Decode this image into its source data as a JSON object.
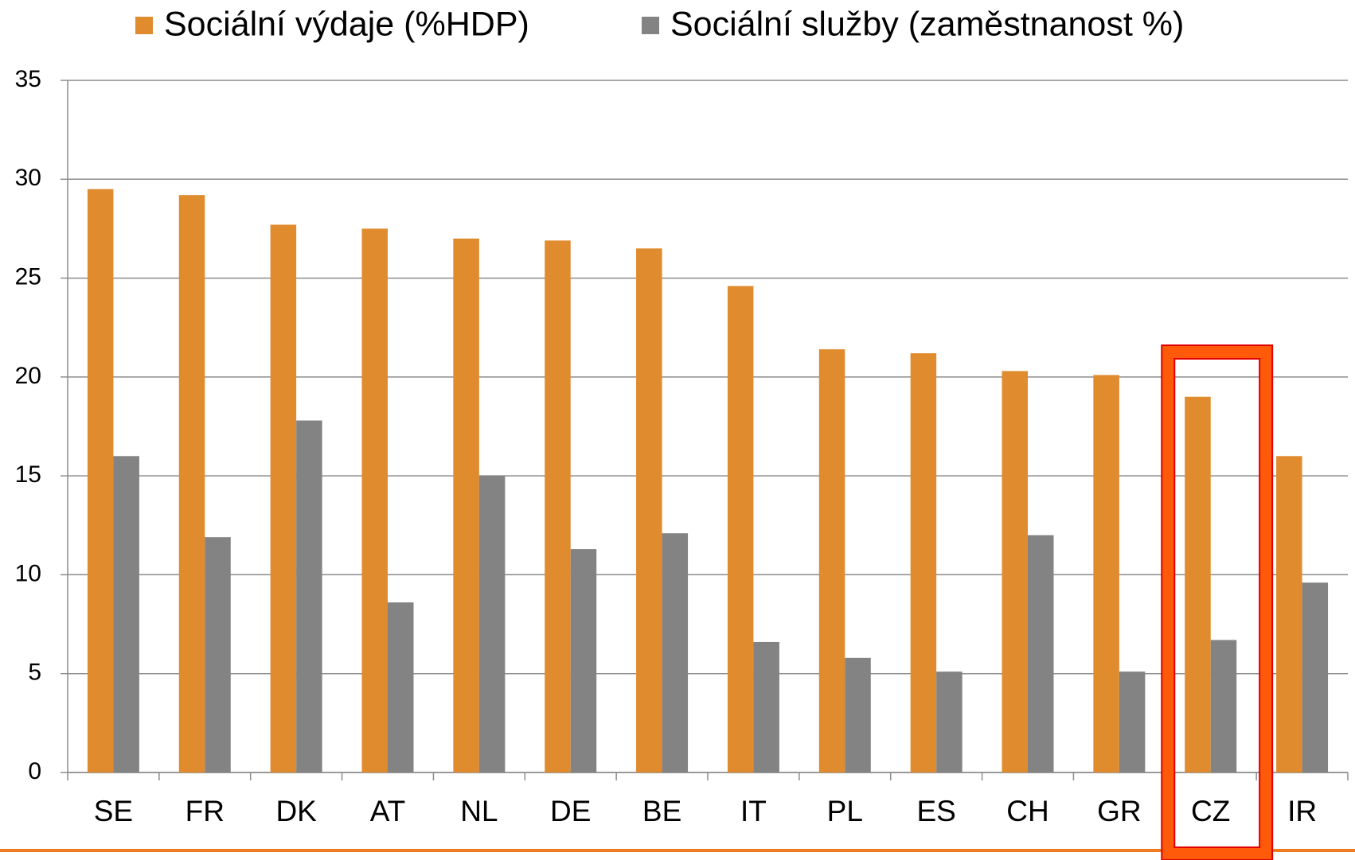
{
  "chart_data": {
    "type": "bar",
    "categories": [
      "SE",
      "FR",
      "DK",
      "AT",
      "NL",
      "DE",
      "BE",
      "IT",
      "PL",
      "ES",
      "CH",
      "GR",
      "CZ",
      "IR"
    ],
    "series": [
      {
        "name": "Sociální výdaje (%HDP)",
        "color": "#e08b2e",
        "values": [
          29.5,
          29.2,
          27.7,
          27.5,
          27.0,
          26.9,
          26.5,
          24.6,
          21.4,
          21.2,
          20.3,
          20.1,
          19.0,
          16.0
        ]
      },
      {
        "name": "Sociální služby (zaměstnanost %)",
        "color": "#838383",
        "values": [
          16.0,
          11.9,
          17.8,
          8.6,
          15.0,
          11.3,
          12.1,
          6.6,
          5.8,
          5.1,
          12.0,
          5.1,
          6.7,
          9.6
        ]
      }
    ],
    "ylim": [
      0,
      35
    ],
    "yticks": [
      0,
      5,
      10,
      15,
      20,
      25,
      30,
      35
    ],
    "grid": true,
    "legend": "top",
    "highlight": "CZ"
  }
}
